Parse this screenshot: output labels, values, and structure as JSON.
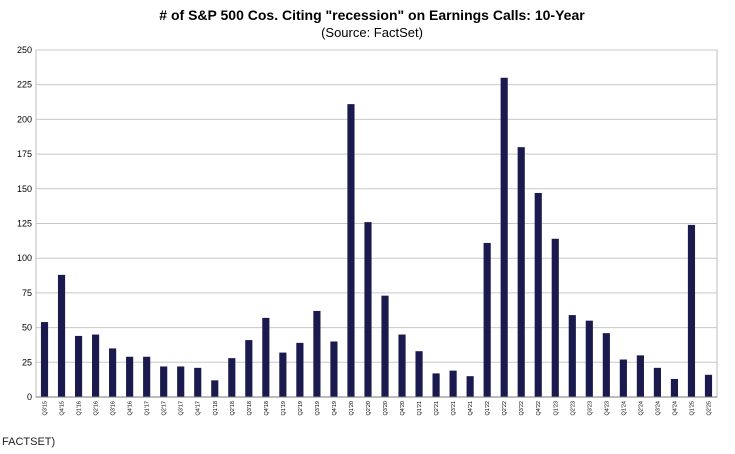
{
  "chart_data": {
    "type": "bar",
    "title": "# of S&P 500 Cos. Citing \"recession\" on Earnings Calls: 10-Year",
    "subtitle": "(Source: FactSet)",
    "xlabel": "",
    "ylabel": "",
    "ylim": [
      0,
      250
    ],
    "yticks": [
      0,
      25,
      50,
      75,
      100,
      125,
      150,
      175,
      200,
      225,
      250
    ],
    "grid": true,
    "legend": "none",
    "bar_color": "#1a1a4e",
    "categories": [
      "Q3'15",
      "Q4'15",
      "Q1'16",
      "Q2'16",
      "Q3'16",
      "Q4'16",
      "Q1'17",
      "Q2'17",
      "Q3'17",
      "Q4'17",
      "Q1'18",
      "Q2'18",
      "Q3'18",
      "Q4'18",
      "Q1'19",
      "Q2'19",
      "Q3'19",
      "Q4'19",
      "Q1'20",
      "Q2'20",
      "Q3'20",
      "Q4'20",
      "Q1'21",
      "Q2'21",
      "Q3'21",
      "Q4'21",
      "Q1'22",
      "Q2'22",
      "Q3'22",
      "Q4'22",
      "Q1'23",
      "Q2'23",
      "Q3'23",
      "Q4'23",
      "Q1'24",
      "Q2'24",
      "Q3'24",
      "Q4'24",
      "Q1'25",
      "Q2'25"
    ],
    "values": [
      54,
      88,
      44,
      45,
      35,
      29,
      29,
      22,
      22,
      21,
      12,
      28,
      41,
      57,
      32,
      39,
      62,
      40,
      211,
      126,
      73,
      45,
      33,
      17,
      19,
      15,
      111,
      230,
      180,
      147,
      114,
      59,
      55,
      46,
      27,
      30,
      21,
      13,
      124,
      16
    ]
  },
  "footer": {
    "text": "FACTSET)"
  }
}
